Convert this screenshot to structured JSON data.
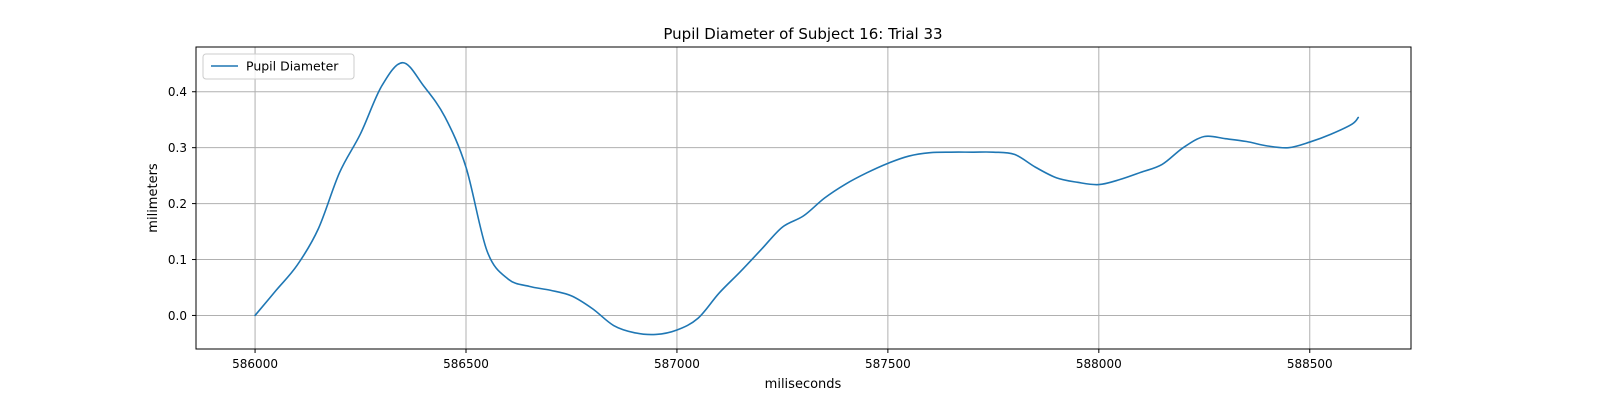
{
  "chart_data": {
    "type": "line",
    "title": "Pupil Diameter of Subject 16: Trial 33",
    "xlabel": "miliseconds",
    "ylabel": "milimeters",
    "xlim": [
      585860,
      588740
    ],
    "ylim": [
      -0.06,
      0.48
    ],
    "xticks": [
      586000,
      586500,
      587000,
      587500,
      588000,
      588500
    ],
    "yticks": [
      0.0,
      0.1,
      0.2,
      0.3,
      0.4
    ],
    "ytick_labels": [
      "0.0",
      "0.1",
      "0.2",
      "0.3",
      "0.4"
    ],
    "grid": true,
    "legend": {
      "placement": "top-left",
      "entries": [
        "Pupil Diameter"
      ]
    },
    "series": [
      {
        "name": "Pupil Diameter",
        "color": "#1f77b4",
        "x": [
          586000,
          586050,
          586100,
          586150,
          586200,
          586250,
          586300,
          586350,
          586400,
          586450,
          586500,
          586550,
          586600,
          586650,
          586700,
          586750,
          586800,
          586850,
          586900,
          586950,
          587000,
          587050,
          587100,
          587150,
          587200,
          587250,
          587300,
          587350,
          587400,
          587450,
          587500,
          587550,
          587600,
          587650,
          587700,
          587750,
          587800,
          587850,
          587900,
          587950,
          588000,
          588050,
          588100,
          588150,
          588200,
          588250,
          588300,
          588350,
          588400,
          588450,
          588500,
          588550,
          588600,
          588615
        ],
        "y": [
          0.0,
          0.045,
          0.09,
          0.155,
          0.255,
          0.325,
          0.41,
          0.452,
          0.41,
          0.355,
          0.265,
          0.115,
          0.065,
          0.052,
          0.045,
          0.035,
          0.012,
          -0.018,
          -0.031,
          -0.034,
          -0.026,
          -0.005,
          0.04,
          0.078,
          0.118,
          0.158,
          0.178,
          0.21,
          0.235,
          0.255,
          0.272,
          0.285,
          0.291,
          0.292,
          0.292,
          0.292,
          0.288,
          0.265,
          0.246,
          0.238,
          0.234,
          0.243,
          0.256,
          0.27,
          0.3,
          0.32,
          0.316,
          0.311,
          0.303,
          0.3,
          0.31,
          0.324,
          0.342,
          0.354
        ]
      }
    ]
  }
}
